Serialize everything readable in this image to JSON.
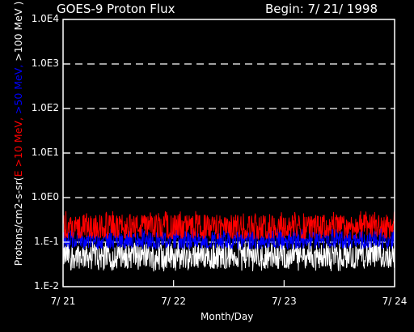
{
  "header": {
    "title": "GOES-9 Proton Flux",
    "begin": "Begin: 7/ 21/ 1998"
  },
  "chart_data": {
    "type": "line",
    "title": "GOES-9 Proton Flux",
    "xlabel": "Month/Day",
    "ylabel_parts": [
      {
        "text": "Protons/cm2-s-sr(",
        "color": "#ffffff"
      },
      {
        "text": "E >10 MeV, ",
        "color": "#ff0000"
      },
      {
        "text": ">50 MeV, ",
        "color": "#0000ff"
      },
      {
        "text": ">100 MeV )",
        "color": "#ffffff"
      }
    ],
    "yscale": "log",
    "ylim": [
      0.01,
      10000
    ],
    "yticks": [
      "1.0E4",
      "1.0E3",
      "1.0E2",
      "1.0E1",
      "1.0E0",
      "1.E-1",
      "1.E-2"
    ],
    "xticks": [
      "7/ 21",
      "7/ 22",
      "7/ 23",
      "7/ 24"
    ],
    "xlim_days": [
      0,
      3
    ],
    "grid": "dashed horizontal",
    "series": [
      {
        "name": "E >10 MeV",
        "color": "#ff0000",
        "typical": 0.22,
        "min": 0.12,
        "max": 0.5
      },
      {
        "name": ">50 MeV",
        "color": "#0000ff",
        "typical": 0.11,
        "min": 0.07,
        "max": 0.2
      },
      {
        "name": ">100 MeV",
        "color": "#ffffff",
        "typical": 0.05,
        "min": 0.022,
        "max": 0.1
      }
    ]
  }
}
